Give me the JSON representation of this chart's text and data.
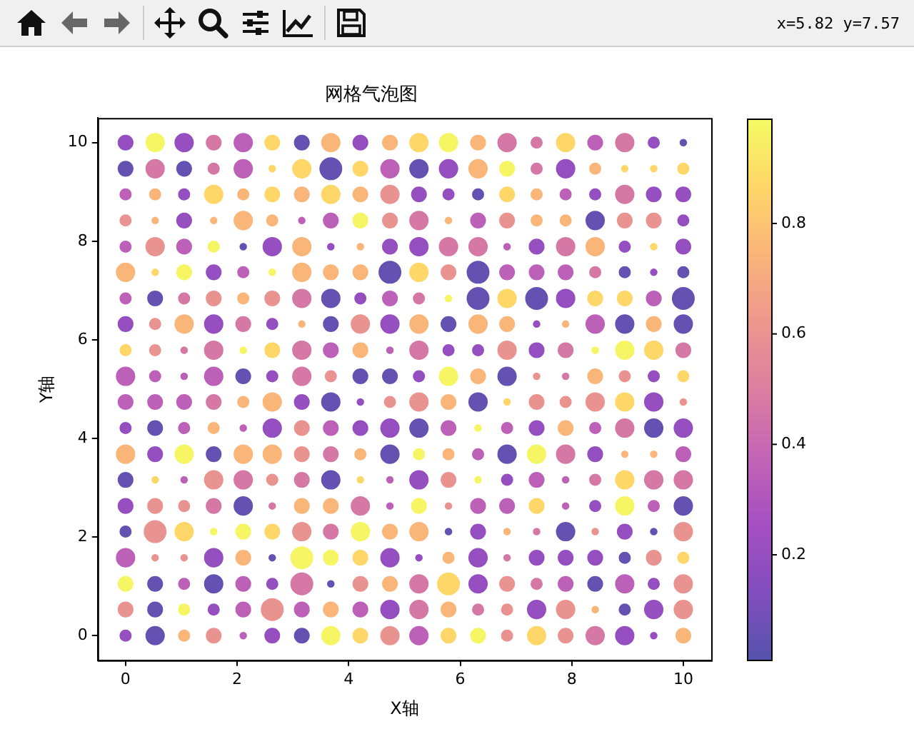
{
  "chart_data": {
    "type": "bubble",
    "title": "网格气泡图",
    "xlabel": "X轴",
    "ylabel": "Y轴",
    "annotations": [
      "x=5.82 y=7.57"
    ],
    "x": [
      0,
      0.53,
      1.05,
      1.58,
      2.11,
      2.63,
      3.16,
      3.68,
      4.21,
      4.74,
      5.26,
      5.79,
      6.32,
      6.84,
      7.37,
      7.89,
      8.42,
      8.95,
      9.47,
      10
    ],
    "xlim": [
      -0.5,
      10.5
    ],
    "ylim": [
      -0.5,
      10.5
    ],
    "xticks": [
      0,
      2,
      4,
      6,
      8,
      10
    ],
    "yticks": [
      0,
      2,
      4,
      6,
      8,
      10
    ],
    "clim": [
      0.01,
      0.99
    ],
    "cticks": [
      0.2,
      0.4,
      0.6,
      0.8
    ],
    "series": [
      {
        "colors": [
          "#954ec0",
          "#f6f564",
          "#954ec0",
          "#d578a6",
          "#bc60b8",
          "#fdd768",
          "#6451b1",
          "#fab679",
          "#954ec0",
          "#fab679",
          "#fdd768",
          "#f6f564",
          "#fab679",
          "#d578a6",
          "#d578a6",
          "#fdd768",
          "#bc60b8",
          "#d578a6",
          "#954ec0",
          "#6451b1"
        ],
        "values": [
          10,
          10,
          10,
          10,
          10,
          10,
          10,
          10,
          10,
          10,
          10,
          10,
          10,
          10,
          10,
          10,
          10,
          10,
          10,
          10
        ],
        "cvalues": [
          0.2,
          0.97,
          0.2,
          0.47,
          0.35,
          0.87,
          0.05,
          0.75,
          0.2,
          0.75,
          0.87,
          0.97,
          0.75,
          0.47,
          0.47,
          0.87,
          0.35,
          0.47,
          0.2,
          0.05
        ],
        "sizes": [
          0.45,
          0.7,
          0.7,
          0.45,
          0.7,
          0.45,
          0.45,
          0.7,
          0.45,
          0.45,
          0.7,
          0.7,
          0.45,
          0.7,
          0.25,
          0.7,
          0.45,
          0.7,
          0.25,
          0.08
        ]
      },
      {
        "colors": [
          "#6451b1",
          "#d578a6",
          "#6451b1",
          "#d578a6",
          "#bc60b8",
          "#fdd768",
          "#fdd768",
          "#6451b1",
          "#fdd768",
          "#bc60b8",
          "#6451b1",
          "#954ec0",
          "#fab679",
          "#f6f564",
          "#d578a6",
          "#954ec0",
          "#fab679",
          "#fdd768",
          "#fdd768",
          "#fdd768"
        ],
        "values": [
          9.47,
          9.47,
          9.47,
          9.47,
          9.47,
          9.47,
          9.47,
          9.47,
          9.47,
          9.47,
          9.47,
          9.47,
          9.47,
          9.47,
          9.47,
          9.47,
          9.47,
          9.47,
          9.47,
          9.47
        ],
        "cvalues": [
          0.05,
          0.47,
          0.05,
          0.47,
          0.35,
          0.87,
          0.87,
          0.05,
          0.87,
          0.35,
          0.05,
          0.2,
          0.75,
          0.97,
          0.47,
          0.2,
          0.75,
          0.87,
          0.87,
          0.87
        ],
        "sizes": [
          0.45,
          0.7,
          0.45,
          0.25,
          0.7,
          0.08,
          0.7,
          1,
          0.45,
          0.7,
          0.7,
          0.7,
          0.7,
          0.45,
          0.25,
          0.7,
          0.25,
          0.08,
          0.08,
          0.25
        ]
      },
      {
        "colors": [
          "#bc60b8",
          "#fab679",
          "#954ec0",
          "#fdd768",
          "#fab679",
          "#fdd768",
          "#fab679",
          "#fdd768",
          "#fab679",
          "#ea9391",
          "#954ec0",
          "#954ec0",
          "#6451b1",
          "#fdd768",
          "#fab679",
          "#bc60b8",
          "#954ec0",
          "#d578a6",
          "#954ec0",
          "#954ec0"
        ],
        "values": [
          8.95,
          8.95,
          8.95,
          8.95,
          8.95,
          8.95,
          8.95,
          8.95,
          8.95,
          8.95,
          8.95,
          8.95,
          8.95,
          8.95,
          8.95,
          8.95,
          8.95,
          8.95,
          8.95,
          8.95
        ],
        "cvalues": [
          0.35,
          0.75,
          0.2,
          0.87,
          0.75,
          0.87,
          0.75,
          0.87,
          0.75,
          0.6,
          0.2,
          0.2,
          0.05,
          0.87,
          0.75,
          0.35,
          0.2,
          0.47,
          0.2,
          0.2
        ],
        "sizes": [
          0.25,
          0.25,
          0.25,
          0.7,
          0.25,
          0.45,
          0.45,
          0.7,
          0.45,
          0.7,
          0.45,
          0.25,
          0.25,
          0.45,
          0.25,
          0.25,
          0.25,
          0.7,
          0.45,
          0.45
        ]
      },
      {
        "colors": [
          "#ea9391",
          "#fab679",
          "#954ec0",
          "#fab679",
          "#fab679",
          "#fab679",
          "#bc60b8",
          "#bc60b8",
          "#f6f564",
          "#ea9391",
          "#d578a6",
          "#fab679",
          "#bc60b8",
          "#ea9391",
          "#fab679",
          "#fab679",
          "#6451b1",
          "#ea9391",
          "#ea9391",
          "#954ec0"
        ],
        "values": [
          8.42,
          8.42,
          8.42,
          8.42,
          8.42,
          8.42,
          8.42,
          8.42,
          8.42,
          8.42,
          8.42,
          8.42,
          8.42,
          8.42,
          8.42,
          8.42,
          8.42,
          8.42,
          8.42,
          8.42
        ],
        "cvalues": [
          0.6,
          0.75,
          0.2,
          0.75,
          0.75,
          0.75,
          0.35,
          0.35,
          0.97,
          0.6,
          0.47,
          0.75,
          0.35,
          0.6,
          0.75,
          0.75,
          0.05,
          0.6,
          0.6,
          0.2
        ],
        "sizes": [
          0.25,
          0.08,
          0.45,
          0.08,
          0.7,
          0.25,
          0.08,
          0.45,
          0.45,
          0.45,
          0.7,
          0.08,
          0.45,
          0.45,
          0.25,
          0.25,
          0.7,
          0.45,
          0.45,
          0.25
        ]
      },
      {
        "colors": [
          "#bc60b8",
          "#ea9391",
          "#bc60b8",
          "#f6f564",
          "#6451b1",
          "#954ec0",
          "#fab679",
          "#954ec0",
          "#fab679",
          "#954ec0",
          "#954ec0",
          "#d578a6",
          "#d578a6",
          "#bc60b8",
          "#954ec0",
          "#d578a6",
          "#fab679",
          "#954ec0",
          "#fdd768",
          "#954ec0"
        ],
        "values": [
          7.89,
          7.89,
          7.89,
          7.89,
          7.89,
          7.89,
          7.89,
          7.89,
          7.89,
          7.89,
          7.89,
          7.89,
          7.89,
          7.89,
          7.89,
          7.89,
          7.89,
          7.89,
          7.89,
          7.89
        ],
        "cvalues": [
          0.35,
          0.6,
          0.35,
          0.97,
          0.05,
          0.2,
          0.75,
          0.2,
          0.75,
          0.2,
          0.2,
          0.47,
          0.47,
          0.35,
          0.2,
          0.47,
          0.75,
          0.2,
          0.87,
          0.2
        ],
        "sizes": [
          0.25,
          0.7,
          0.45,
          0.25,
          0.08,
          0.7,
          0.7,
          0.08,
          0.08,
          0.45,
          0.7,
          0.7,
          0.7,
          0.08,
          0.45,
          0.7,
          0.7,
          0.25,
          0.08,
          0.45
        ]
      },
      {
        "colors": [
          "#fab679",
          "#fdd768",
          "#f6f564",
          "#954ec0",
          "#bc60b8",
          "#f6f564",
          "#fab679",
          "#fab679",
          "#fab679",
          "#6451b1",
          "#fdd768",
          "#ea9391",
          "#6451b1",
          "#bc60b8",
          "#bc60b8",
          "#bc60b8",
          "#d578a6",
          "#6451b1",
          "#954ec0",
          "#6451b1"
        ],
        "values": [
          7.37,
          7.37,
          7.37,
          7.37,
          7.37,
          7.37,
          7.37,
          7.37,
          7.37,
          7.37,
          7.37,
          7.37,
          7.37,
          7.37,
          7.37,
          7.37,
          7.37,
          7.37,
          7.37,
          7.37
        ],
        "cvalues": [
          0.75,
          0.87,
          0.97,
          0.2,
          0.35,
          0.97,
          0.75,
          0.75,
          0.75,
          0.05,
          0.87,
          0.6,
          0.05,
          0.35,
          0.35,
          0.35,
          0.47,
          0.05,
          0.2,
          0.05
        ],
        "sizes": [
          0.7,
          0.08,
          0.45,
          0.45,
          0.25,
          0.08,
          0.7,
          0.45,
          0.45,
          1,
          0.7,
          0.45,
          1,
          0.45,
          0.45,
          0.45,
          0.25,
          0.25,
          0.08,
          0.25
        ]
      },
      {
        "colors": [
          "#bc60b8",
          "#6451b1",
          "#d578a6",
          "#ea9391",
          "#fab679",
          "#ea9391",
          "#d578a6",
          "#6451b1",
          "#954ec0",
          "#bc60b8",
          "#d578a6",
          "#f6f564",
          "#6451b1",
          "#fdd768",
          "#6451b1",
          "#954ec0",
          "#fdd768",
          "#fdd768",
          "#bc60b8",
          "#6451b1"
        ],
        "values": [
          6.84,
          6.84,
          6.84,
          6.84,
          6.84,
          6.84,
          6.84,
          6.84,
          6.84,
          6.84,
          6.84,
          6.84,
          6.84,
          6.84,
          6.84,
          6.84,
          6.84,
          6.84,
          6.84,
          6.84
        ],
        "cvalues": [
          0.35,
          0.05,
          0.47,
          0.6,
          0.75,
          0.6,
          0.47,
          0.05,
          0.2,
          0.35,
          0.47,
          0.97,
          0.05,
          0.87,
          0.05,
          0.2,
          0.87,
          0.87,
          0.35,
          0.05
        ],
        "sizes": [
          0.25,
          0.45,
          0.25,
          0.45,
          0.25,
          0.45,
          0.7,
          0.7,
          0.25,
          0.45,
          0.25,
          0.08,
          1,
          0.7,
          1,
          0.7,
          0.45,
          0.45,
          0.45,
          1
        ]
      },
      {
        "colors": [
          "#954ec0",
          "#ea9391",
          "#fab679",
          "#954ec0",
          "#d578a6",
          "#954ec0",
          "#fab679",
          "#6451b1",
          "#ea9391",
          "#954ec0",
          "#fab679",
          "#6451b1",
          "#fab679",
          "#fab679",
          "#954ec0",
          "#fab679",
          "#bc60b8",
          "#6451b1",
          "#fab679",
          "#6451b1"
        ],
        "values": [
          6.32,
          6.32,
          6.32,
          6.32,
          6.32,
          6.32,
          6.32,
          6.32,
          6.32,
          6.32,
          6.32,
          6.32,
          6.32,
          6.32,
          6.32,
          6.32,
          6.32,
          6.32,
          6.32,
          6.32
        ],
        "cvalues": [
          0.2,
          0.6,
          0.75,
          0.2,
          0.47,
          0.2,
          0.75,
          0.05,
          0.6,
          0.2,
          0.75,
          0.05,
          0.75,
          0.75,
          0.2,
          0.75,
          0.35,
          0.05,
          0.75,
          0.05
        ],
        "sizes": [
          0.45,
          0.25,
          0.7,
          0.7,
          0.45,
          0.25,
          0.08,
          0.45,
          0.7,
          0.7,
          0.7,
          0.45,
          0.7,
          0.45,
          0.08,
          0.08,
          0.7,
          0.7,
          0.45,
          0.7
        ]
      },
      {
        "colors": [
          "#fdd768",
          "#ea9391",
          "#d578a6",
          "#d578a6",
          "#f6f564",
          "#fdd768",
          "#d578a6",
          "#bc60b8",
          "#fab679",
          "#bc60b8",
          "#d578a6",
          "#954ec0",
          "#954ec0",
          "#ea9391",
          "#954ec0",
          "#d578a6",
          "#f6f564",
          "#f6f564",
          "#fdd768",
          "#d578a6"
        ],
        "values": [
          5.79,
          5.79,
          5.79,
          5.79,
          5.79,
          5.79,
          5.79,
          5.79,
          5.79,
          5.79,
          5.79,
          5.79,
          5.79,
          5.79,
          5.79,
          5.79,
          5.79,
          5.79,
          5.79,
          5.79
        ],
        "cvalues": [
          0.87,
          0.6,
          0.47,
          0.47,
          0.97,
          0.87,
          0.47,
          0.35,
          0.75,
          0.35,
          0.47,
          0.2,
          0.2,
          0.6,
          0.2,
          0.47,
          0.97,
          0.97,
          0.87,
          0.47
        ],
        "sizes": [
          0.25,
          0.25,
          0.08,
          0.7,
          0.08,
          0.45,
          0.7,
          0.45,
          0.45,
          0.08,
          0.7,
          0.25,
          0.25,
          0.7,
          0.45,
          0.45,
          0.08,
          0.7,
          0.7,
          0.45
        ]
      },
      {
        "colors": [
          "#bc60b8",
          "#bc60b8",
          "#bc60b8",
          "#bc60b8",
          "#6451b1",
          "#954ec0",
          "#d578a6",
          "#ea9391",
          "#6451b1",
          "#6451b1",
          "#954ec0",
          "#f6f564",
          "#fab679",
          "#6451b1",
          "#ea9391",
          "#d578a6",
          "#fab679",
          "#ea9391",
          "#954ec0",
          "#fdd768"
        ],
        "values": [
          5.26,
          5.26,
          5.26,
          5.26,
          5.26,
          5.26,
          5.26,
          5.26,
          5.26,
          5.26,
          5.26,
          5.26,
          5.26,
          5.26,
          5.26,
          5.26,
          5.26,
          5.26,
          5.26,
          5.26
        ],
        "cvalues": [
          0.35,
          0.35,
          0.35,
          0.35,
          0.05,
          0.2,
          0.47,
          0.6,
          0.05,
          0.05,
          0.2,
          0.97,
          0.75,
          0.05,
          0.6,
          0.47,
          0.75,
          0.6,
          0.2,
          0.87
        ],
        "sizes": [
          0.7,
          0.25,
          0.08,
          0.7,
          0.45,
          0.25,
          0.7,
          0.25,
          0.45,
          0.45,
          0.25,
          0.7,
          0.45,
          0.7,
          0.08,
          0.08,
          0.45,
          0.25,
          0.25,
          0.25
        ]
      },
      {
        "colors": [
          "#bc60b8",
          "#bc60b8",
          "#bc60b8",
          "#d578a6",
          "#fab679",
          "#fab679",
          "#954ec0",
          "#6451b1",
          "#954ec0",
          "#ea9391",
          "#ea9391",
          "#fab679",
          "#6451b1",
          "#fdd768",
          "#ea9391",
          "#ea9391",
          "#ea9391",
          "#fdd768",
          "#954ec0",
          "#ea9391"
        ],
        "values": [
          4.74,
          4.74,
          4.74,
          4.74,
          4.74,
          4.74,
          4.74,
          4.74,
          4.74,
          4.74,
          4.74,
          4.74,
          4.74,
          4.74,
          4.74,
          4.74,
          4.74,
          4.74,
          4.74,
          4.74
        ],
        "cvalues": [
          0.35,
          0.35,
          0.35,
          0.47,
          0.75,
          0.75,
          0.2,
          0.05,
          0.2,
          0.6,
          0.6,
          0.75,
          0.05,
          0.87,
          0.6,
          0.6,
          0.6,
          0.87,
          0.2,
          0.6
        ],
        "sizes": [
          0.45,
          0.45,
          0.45,
          0.45,
          0.25,
          0.7,
          0.45,
          0.7,
          0.08,
          0.25,
          0.7,
          0.45,
          0.7,
          0.08,
          0.45,
          0.25,
          0.7,
          0.7,
          0.7,
          0.08
        ]
      },
      {
        "colors": [
          "#954ec0",
          "#6451b1",
          "#bc60b8",
          "#fab679",
          "#bc60b8",
          "#954ec0",
          "#ea9391",
          "#bc60b8",
          "#954ec0",
          "#954ec0",
          "#6451b1",
          "#bc60b8",
          "#f6f564",
          "#bc60b8",
          "#954ec0",
          "#fab679",
          "#bc60b8",
          "#d578a6",
          "#6451b1",
          "#954ec0"
        ],
        "values": [
          4.21,
          4.21,
          4.21,
          4.21,
          4.21,
          4.21,
          4.21,
          4.21,
          4.21,
          4.21,
          4.21,
          4.21,
          4.21,
          4.21,
          4.21,
          4.21,
          4.21,
          4.21,
          4.21,
          4.21
        ],
        "cvalues": [
          0.2,
          0.05,
          0.35,
          0.75,
          0.35,
          0.2,
          0.6,
          0.35,
          0.2,
          0.2,
          0.05,
          0.35,
          0.97,
          0.35,
          0.2,
          0.75,
          0.35,
          0.47,
          0.05,
          0.2
        ],
        "sizes": [
          0.25,
          0.45,
          0.25,
          0.25,
          0.08,
          0.7,
          0.45,
          0.45,
          0.45,
          0.7,
          0.7,
          0.45,
          0.08,
          0.25,
          0.45,
          0.45,
          0.25,
          0.7,
          0.7,
          0.7
        ]
      },
      {
        "colors": [
          "#fab679",
          "#954ec0",
          "#f6f564",
          "#6451b1",
          "#fab679",
          "#fab679",
          "#ea9391",
          "#d578a6",
          "#fab679",
          "#6451b1",
          "#f6f564",
          "#fab679",
          "#bc60b8",
          "#6451b1",
          "#f6f564",
          "#d578a6",
          "#954ec0",
          "#fab679",
          "#fab679",
          "#bc60b8"
        ],
        "values": [
          3.68,
          3.68,
          3.68,
          3.68,
          3.68,
          3.68,
          3.68,
          3.68,
          3.68,
          3.68,
          3.68,
          3.68,
          3.68,
          3.68,
          3.68,
          3.68,
          3.68,
          3.68,
          3.68,
          3.68
        ],
        "cvalues": [
          0.75,
          0.2,
          0.97,
          0.05,
          0.75,
          0.75,
          0.6,
          0.47,
          0.75,
          0.05,
          0.97,
          0.75,
          0.35,
          0.05,
          0.97,
          0.47,
          0.2,
          0.75,
          0.75,
          0.35
        ],
        "sizes": [
          0.7,
          0.45,
          0.7,
          0.45,
          0.7,
          0.7,
          0.45,
          0.45,
          0.25,
          0.7,
          0.25,
          0.25,
          0.25,
          0.7,
          0.7,
          0.7,
          0.45,
          0.08,
          0.08,
          0.45
        ]
      },
      {
        "colors": [
          "#6451b1",
          "#fdd768",
          "#bc60b8",
          "#ea9391",
          "#d578a6",
          "#ea9391",
          "#d578a6",
          "#6451b1",
          "#fdd768",
          "#bc60b8",
          "#954ec0",
          "#ea9391",
          "#f6f564",
          "#954ec0",
          "#bc60b8",
          "#bc60b8",
          "#d578a6",
          "#fdd768",
          "#d578a6",
          "#d578a6"
        ],
        "values": [
          3.16,
          3.16,
          3.16,
          3.16,
          3.16,
          3.16,
          3.16,
          3.16,
          3.16,
          3.16,
          3.16,
          3.16,
          3.16,
          3.16,
          3.16,
          3.16,
          3.16,
          3.16,
          3.16,
          3.16
        ],
        "cvalues": [
          0.05,
          0.87,
          0.35,
          0.6,
          0.47,
          0.6,
          0.47,
          0.05,
          0.87,
          0.35,
          0.2,
          0.6,
          0.97,
          0.2,
          0.35,
          0.35,
          0.47,
          0.87,
          0.47,
          0.47
        ],
        "sizes": [
          0.45,
          0.08,
          0.08,
          0.7,
          0.7,
          0.25,
          0.45,
          0.7,
          0.08,
          0.08,
          0.7,
          0.45,
          0.08,
          0.25,
          0.45,
          0.08,
          0.25,
          0.7,
          0.7,
          0.7
        ]
      },
      {
        "colors": [
          "#954ec0",
          "#ea9391",
          "#ea9391",
          "#d578a6",
          "#6451b1",
          "#d578a6",
          "#fab679",
          "#fab679",
          "#d578a6",
          "#bc60b8",
          "#f6f564",
          "#ea9391",
          "#bc60b8",
          "#bc60b8",
          "#fdd768",
          "#bc60b8",
          "#954ec0",
          "#f6f564",
          "#bc60b8",
          "#6451b1"
        ],
        "values": [
          2.63,
          2.63,
          2.63,
          2.63,
          2.63,
          2.63,
          2.63,
          2.63,
          2.63,
          2.63,
          2.63,
          2.63,
          2.63,
          2.63,
          2.63,
          2.63,
          2.63,
          2.63,
          2.63,
          2.63
        ],
        "cvalues": [
          0.2,
          0.6,
          0.6,
          0.47,
          0.05,
          0.47,
          0.75,
          0.75,
          0.47,
          0.35,
          0.97,
          0.6,
          0.35,
          0.35,
          0.87,
          0.35,
          0.2,
          0.97,
          0.35,
          0.05
        ],
        "sizes": [
          0.45,
          0.45,
          0.25,
          0.45,
          0.7,
          0.08,
          0.45,
          0.45,
          0.7,
          0.08,
          0.45,
          0.08,
          0.45,
          0.45,
          0.45,
          0.08,
          0.25,
          0.7,
          0.25,
          0.7
        ]
      },
      {
        "colors": [
          "#6451b1",
          "#ea9391",
          "#fdd768",
          "#f6f564",
          "#f6f564",
          "#fdd768",
          "#ea9391",
          "#d578a6",
          "#f6f564",
          "#fab679",
          "#fab679",
          "#6451b1",
          "#954ec0",
          "#fab679",
          "#d578a6",
          "#6451b1",
          "#ea9391",
          "#954ec0",
          "#6451b1",
          "#ea9391"
        ],
        "values": [
          2.11,
          2.11,
          2.11,
          2.11,
          2.11,
          2.11,
          2.11,
          2.11,
          2.11,
          2.11,
          2.11,
          2.11,
          2.11,
          2.11,
          2.11,
          2.11,
          2.11,
          2.11,
          2.11,
          2.11
        ],
        "cvalues": [
          0.05,
          0.6,
          0.87,
          0.97,
          0.97,
          0.87,
          0.6,
          0.47,
          0.97,
          0.75,
          0.75,
          0.05,
          0.2,
          0.75,
          0.47,
          0.05,
          0.6,
          0.2,
          0.05,
          0.6
        ],
        "sizes": [
          0.25,
          1,
          0.7,
          0.08,
          0.45,
          0.45,
          0.7,
          0.45,
          0.7,
          0.45,
          0.7,
          0.08,
          0.45,
          0.08,
          0.08,
          0.7,
          0.08,
          0.45,
          0.08,
          0.7
        ]
      },
      {
        "colors": [
          "#bc60b8",
          "#ea9391",
          "#ea9391",
          "#954ec0",
          "#fab679",
          "#6451b1",
          "#f6f564",
          "#f6f564",
          "#fdd768",
          "#954ec0",
          "#954ec0",
          "#fab679",
          "#954ec0",
          "#d578a6",
          "#954ec0",
          "#954ec0",
          "#954ec0",
          "#6451b1",
          "#ea9391",
          "#fdd768"
        ],
        "values": [
          1.58,
          1.58,
          1.58,
          1.58,
          1.58,
          1.58,
          1.58,
          1.58,
          1.58,
          1.58,
          1.58,
          1.58,
          1.58,
          1.58,
          1.58,
          1.58,
          1.58,
          1.58,
          1.58,
          1.58
        ],
        "cvalues": [
          0.35,
          0.6,
          0.6,
          0.2,
          0.75,
          0.05,
          0.97,
          0.97,
          0.87,
          0.2,
          0.2,
          0.75,
          0.2,
          0.47,
          0.2,
          0.2,
          0.2,
          0.05,
          0.6,
          0.87
        ],
        "sizes": [
          0.7,
          0.08,
          0.08,
          0.7,
          0.45,
          0.08,
          1,
          0.45,
          0.45,
          0.7,
          0.08,
          0.25,
          0.7,
          0.08,
          0.45,
          0.45,
          0.45,
          0.25,
          0.45,
          0.25
        ]
      },
      {
        "colors": [
          "#f6f564",
          "#6451b1",
          "#bc60b8",
          "#6451b1",
          "#bc60b8",
          "#954ec0",
          "#d578a6",
          "#6451b1",
          "#ea9391",
          "#fab679",
          "#d578a6",
          "#fdd768",
          "#954ec0",
          "#ea9391",
          "#d578a6",
          "#bc60b8",
          "#6451b1",
          "#bc60b8",
          "#954ec0",
          "#ea9391"
        ],
        "values": [
          1.05,
          1.05,
          1.05,
          1.05,
          1.05,
          1.05,
          1.05,
          1.05,
          1.05,
          1.05,
          1.05,
          1.05,
          1.05,
          1.05,
          1.05,
          1.05,
          1.05,
          1.05,
          1.05,
          1.05
        ],
        "cvalues": [
          0.97,
          0.05,
          0.35,
          0.05,
          0.35,
          0.2,
          0.47,
          0.05,
          0.6,
          0.75,
          0.47,
          0.87,
          0.2,
          0.6,
          0.47,
          0.35,
          0.05,
          0.35,
          0.2,
          0.6
        ],
        "sizes": [
          0.45,
          0.45,
          0.25,
          0.7,
          0.45,
          0.25,
          1,
          0.08,
          0.45,
          0.45,
          0.7,
          1,
          0.7,
          0.45,
          0.25,
          0.45,
          0.45,
          0.7,
          0.25,
          0.7
        ]
      },
      {
        "colors": [
          "#ea9391",
          "#6451b1",
          "#f6f564",
          "#954ec0",
          "#bc60b8",
          "#ea9391",
          "#bc60b8",
          "#fab679",
          "#bc60b8",
          "#954ec0",
          "#d578a6",
          "#fab679",
          "#d578a6",
          "#ea9391",
          "#954ec0",
          "#ea9391",
          "#fab679",
          "#6451b1",
          "#954ec0",
          "#ea9391"
        ],
        "values": [
          0.53,
          0.53,
          0.53,
          0.53,
          0.53,
          0.53,
          0.53,
          0.53,
          0.53,
          0.53,
          0.53,
          0.53,
          0.53,
          0.53,
          0.53,
          0.53,
          0.53,
          0.53,
          0.53,
          0.53
        ],
        "cvalues": [
          0.6,
          0.05,
          0.97,
          0.2,
          0.35,
          0.6,
          0.35,
          0.75,
          0.35,
          0.2,
          0.47,
          0.75,
          0.47,
          0.6,
          0.2,
          0.6,
          0.75,
          0.05,
          0.2,
          0.6
        ],
        "sizes": [
          0.45,
          0.45,
          0.25,
          0.25,
          0.45,
          1,
          0.45,
          0.45,
          0.45,
          0.7,
          0.7,
          0.45,
          0.25,
          0.25,
          0.7,
          0.7,
          0.08,
          0.25,
          0.7,
          0.7
        ]
      },
      {
        "colors": [
          "#954ec0",
          "#6451b1",
          "#fab679",
          "#ea9391",
          "#bc60b8",
          "#954ec0",
          "#6451b1",
          "#f6f564",
          "#fdd768",
          "#ea9391",
          "#bc60b8",
          "#fdd768",
          "#f6f564",
          "#ea9391",
          "#fdd768",
          "#ea9391",
          "#d578a6",
          "#954ec0",
          "#954ec0",
          "#fab679"
        ],
        "values": [
          0,
          0,
          0,
          0,
          0,
          0,
          0,
          0,
          0,
          0,
          0,
          0,
          0,
          0,
          0,
          0,
          0,
          0,
          0,
          0
        ],
        "cvalues": [
          0.2,
          0.05,
          0.75,
          0.6,
          0.35,
          0.2,
          0.05,
          0.97,
          0.87,
          0.6,
          0.35,
          0.87,
          0.97,
          0.6,
          0.87,
          0.6,
          0.47,
          0.2,
          0.2,
          0.75
        ],
        "sizes": [
          0.25,
          0.7,
          0.25,
          0.45,
          0.08,
          0.45,
          0.45,
          0.7,
          0.45,
          0.7,
          0.7,
          0.45,
          0.45,
          0.25,
          0.7,
          0.45,
          0.7,
          0.7,
          0.08,
          0.45
        ]
      }
    ]
  }
}
